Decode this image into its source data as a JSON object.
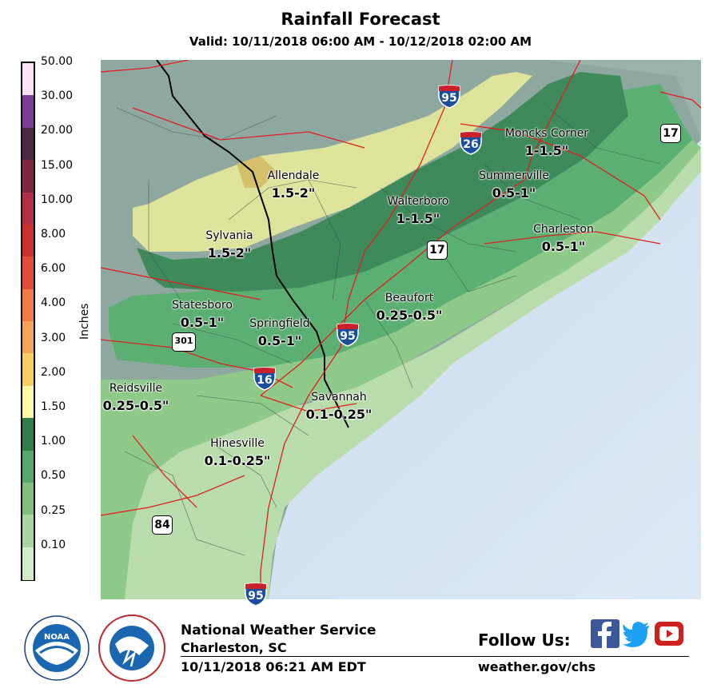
{
  "title": "Rainfall Forecast",
  "subtitle": "Valid: 10/11/2018 06:00 AM - 10/12/2018 02:00 AM",
  "legend": {
    "units": "Inches",
    "ticks": [
      "50.00",
      "30.00",
      "20.00",
      "15.00",
      "10.00",
      "8.00",
      "6.00",
      "4.00",
      "3.00",
      "2.00",
      "1.50",
      "1.00",
      "0.50",
      "0.25",
      "0.10"
    ],
    "colors": [
      "#fde0f6",
      "#7d3c98",
      "#4a2840",
      "#7e2740",
      "#b23047",
      "#c9322c",
      "#e04e3a",
      "#f27a46",
      "#f6a35a",
      "#f9cd66",
      "#fdf7a8",
      "#2f7d49",
      "#55a86a",
      "#7fbf7b",
      "#a9d6a0",
      "#d2ebc8"
    ]
  },
  "map": {
    "places": [
      {
        "name": "Moncks Corner",
        "amount": "1-1.5\""
      },
      {
        "name": "Summerville",
        "amount": "0.5-1\""
      },
      {
        "name": "Allendale",
        "amount": "1.5-2\""
      },
      {
        "name": "Walterboro",
        "amount": "1-1.5\""
      },
      {
        "name": "Charleston",
        "amount": "0.5-1\""
      },
      {
        "name": "Sylvania",
        "amount": "1.5-2\""
      },
      {
        "name": "Statesboro",
        "amount": "0.5-1\""
      },
      {
        "name": "Springfield",
        "amount": "0.5-1\""
      },
      {
        "name": "Beaufort",
        "amount": "0.25-0.5\""
      },
      {
        "name": "Reidsville",
        "amount": "0.25-0.5\""
      },
      {
        "name": "Savannah",
        "amount": "0.1-0.25\""
      },
      {
        "name": "Hinesville",
        "amount": "0.1-0.25\""
      }
    ],
    "shields": [
      {
        "type": "interstate",
        "number": "95"
      },
      {
        "type": "interstate",
        "number": "26"
      },
      {
        "type": "interstate",
        "number": "95"
      },
      {
        "type": "interstate",
        "number": "16"
      },
      {
        "type": "interstate",
        "number": "95"
      },
      {
        "type": "us",
        "number": "17"
      },
      {
        "type": "us",
        "number": "17"
      },
      {
        "type": "us",
        "number": "301"
      },
      {
        "type": "us",
        "number": "84"
      }
    ]
  },
  "footer": {
    "org": "National Weather Service",
    "location": "Charleston, SC",
    "issued": "10/11/2018 06:21 AM EDT",
    "follow": "Follow Us:",
    "website": "weather.gov/chs",
    "social_icons": [
      "facebook-icon",
      "twitter-icon",
      "youtube-icon"
    ],
    "logos": [
      "noaa-logo",
      "nws-logo"
    ],
    "social_colors": {
      "facebook": "#3b5998",
      "twitter": "#1da1f2",
      "youtube": "#cd201f"
    }
  }
}
